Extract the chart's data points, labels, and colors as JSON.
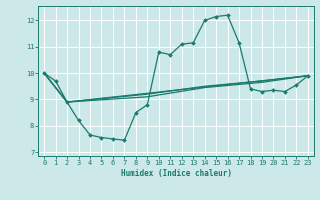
{
  "title": "",
  "xlabel": "Humidex (Indice chaleur)",
  "bg_color": "#cce8e8",
  "grid_color": "#ffffff",
  "line_color": "#1a7a6e",
  "xlim": [
    -0.5,
    23.5
  ],
  "ylim": [
    6.85,
    12.55
  ],
  "yticks": [
    7,
    8,
    9,
    10,
    11,
    12
  ],
  "xticks": [
    0,
    1,
    2,
    3,
    4,
    5,
    6,
    7,
    8,
    9,
    10,
    11,
    12,
    13,
    14,
    15,
    16,
    17,
    18,
    19,
    20,
    21,
    22,
    23
  ],
  "series1_x": [
    0,
    1,
    2,
    3,
    4,
    5,
    6,
    7,
    8,
    9,
    10,
    11,
    12,
    13,
    14,
    15,
    16,
    17,
    18,
    19,
    20,
    21,
    22,
    23
  ],
  "series1_y": [
    10.0,
    9.7,
    8.9,
    8.2,
    7.65,
    7.55,
    7.5,
    7.45,
    8.5,
    8.8,
    10.8,
    10.7,
    11.1,
    11.15,
    12.0,
    12.15,
    12.2,
    11.15,
    9.4,
    9.3,
    9.35,
    9.3,
    9.55,
    9.9
  ],
  "series2_x": [
    0,
    2,
    23
  ],
  "series2_y": [
    10.0,
    8.9,
    9.9
  ],
  "series3_x": [
    0,
    2,
    9,
    14,
    19,
    23
  ],
  "series3_y": [
    10.0,
    8.9,
    9.1,
    9.45,
    9.65,
    9.9
  ],
  "series4_x": [
    0,
    2,
    9,
    14,
    19,
    23
  ],
  "series4_y": [
    10.0,
    8.9,
    9.2,
    9.5,
    9.7,
    9.9
  ]
}
